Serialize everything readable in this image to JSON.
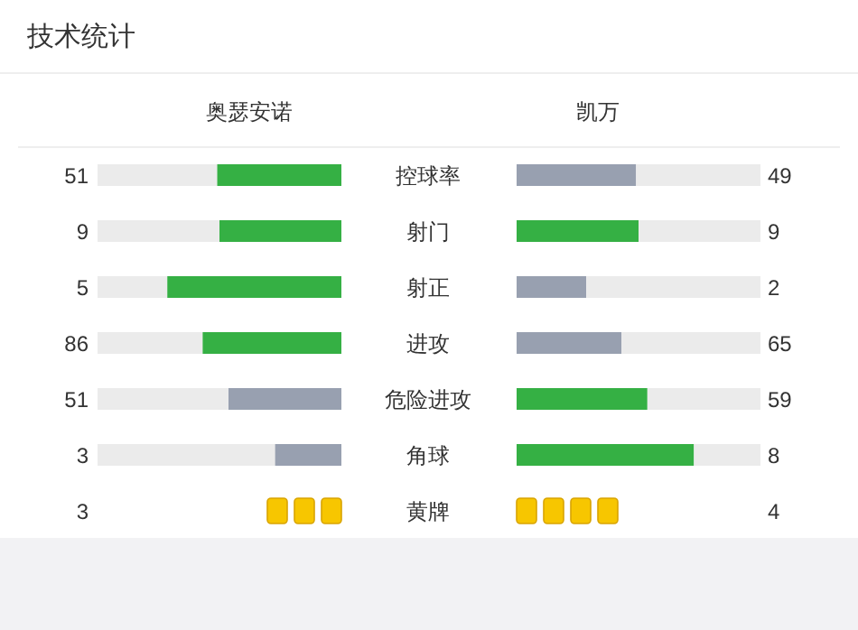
{
  "chart_data": {
    "type": "other",
    "title": "技术统计",
    "data_labels": true,
    "categories": [
      "控球率",
      "射门",
      "射正",
      "进攻",
      "危险进攻",
      "角球",
      "黄牌"
    ],
    "series": [
      {
        "name": "奥瑟安诺",
        "values": [
          51,
          9,
          5,
          86,
          51,
          3,
          3
        ],
        "colors": [
          "#35b044",
          "#35b044",
          "#35b044",
          "#35b044",
          "#98a0b0",
          "#98a0b0",
          "#f7c600"
        ]
      },
      {
        "name": "凯万",
        "values": [
          49,
          9,
          2,
          65,
          59,
          8,
          4
        ],
        "colors": [
          "#98a0b0",
          "#35b044",
          "#98a0b0",
          "#98a0b0",
          "#35b044",
          "#35b044",
          "#f7c600"
        ]
      }
    ]
  }
}
